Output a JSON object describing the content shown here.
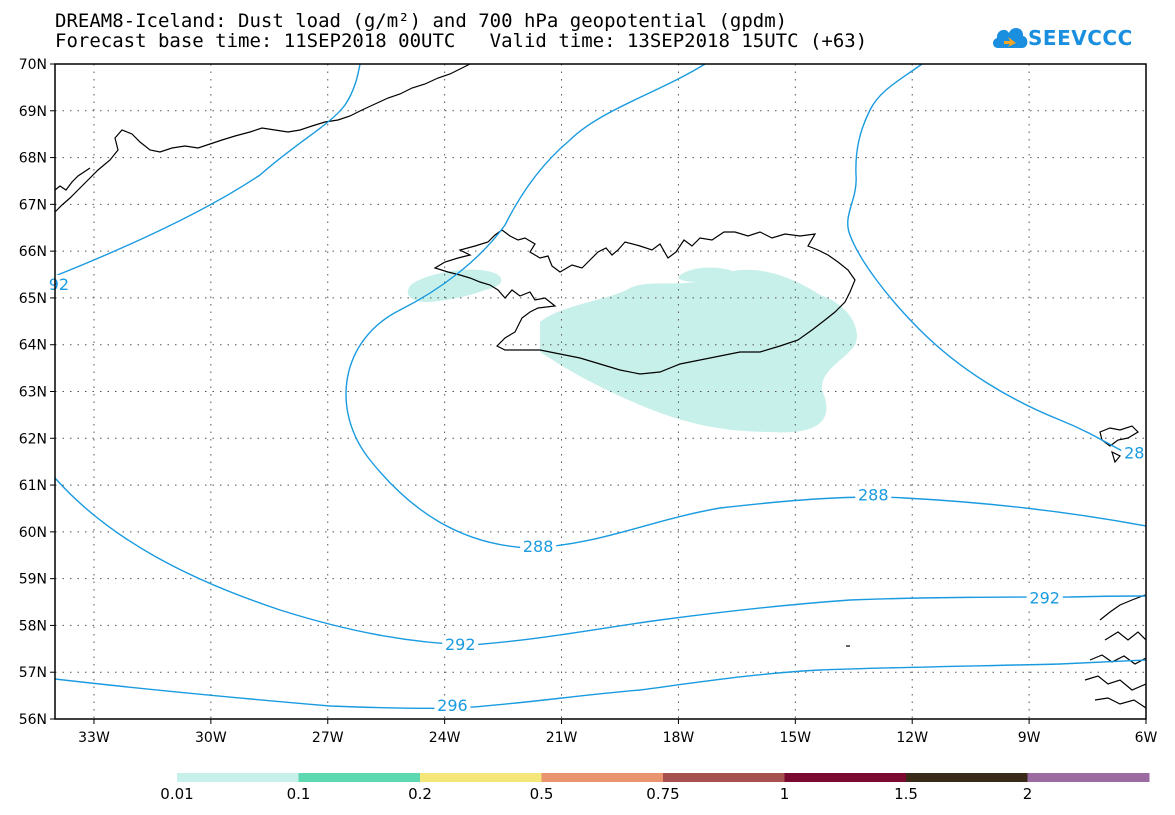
{
  "title_line1": "DREAM8-Iceland: Dust load (g/m²) and 700 hPa geopotential (gpdm)",
  "title_line2": "Forecast base time: 11SEP2018 00UTC   Valid time: 13SEP2018 15UTC (+63)",
  "logo_text": "SEEVCCC",
  "map": {
    "lon_range": [
      -34,
      -6
    ],
    "lat_range": [
      56,
      70
    ],
    "lat_ticks": [
      "56N",
      "57N",
      "58N",
      "59N",
      "60N",
      "61N",
      "62N",
      "63N",
      "64N",
      "65N",
      "66N",
      "67N",
      "68N",
      "69N",
      "70N"
    ],
    "lon_ticks": [
      "33W",
      "30W",
      "27W",
      "24W",
      "21W",
      "18W",
      "15W",
      "12W",
      "9W",
      "6W"
    ],
    "contour_color": "#1a9be0",
    "dust_color": "#c8f0ea",
    "contour_labels": [
      {
        "text": "288",
        "lon": -21.6,
        "lat": 59.7
      },
      {
        "text": "288",
        "lon": -13.0,
        "lat": 60.8
      },
      {
        "text": "292",
        "lon": -23.6,
        "lat": 57.6
      },
      {
        "text": "292",
        "lon": -8.6,
        "lat": 58.6
      },
      {
        "text": "296",
        "lon": -23.8,
        "lat": 56.3
      },
      {
        "text": "92",
        "lon": -33.9,
        "lat": 65.3
      },
      {
        "text": "28",
        "lon": -6.3,
        "lat": 61.7
      }
    ]
  },
  "colorbar": {
    "labels": [
      "0.01",
      "0.1",
      "0.2",
      "0.5",
      "0.75",
      "1",
      "1.5",
      "2"
    ],
    "colors": [
      "#c8f0ea",
      "#5ed8b0",
      "#f5e67a",
      "#e8946e",
      "#a65050",
      "#7a0a30",
      "#3a2a18",
      "#9a6aa0"
    ]
  }
}
